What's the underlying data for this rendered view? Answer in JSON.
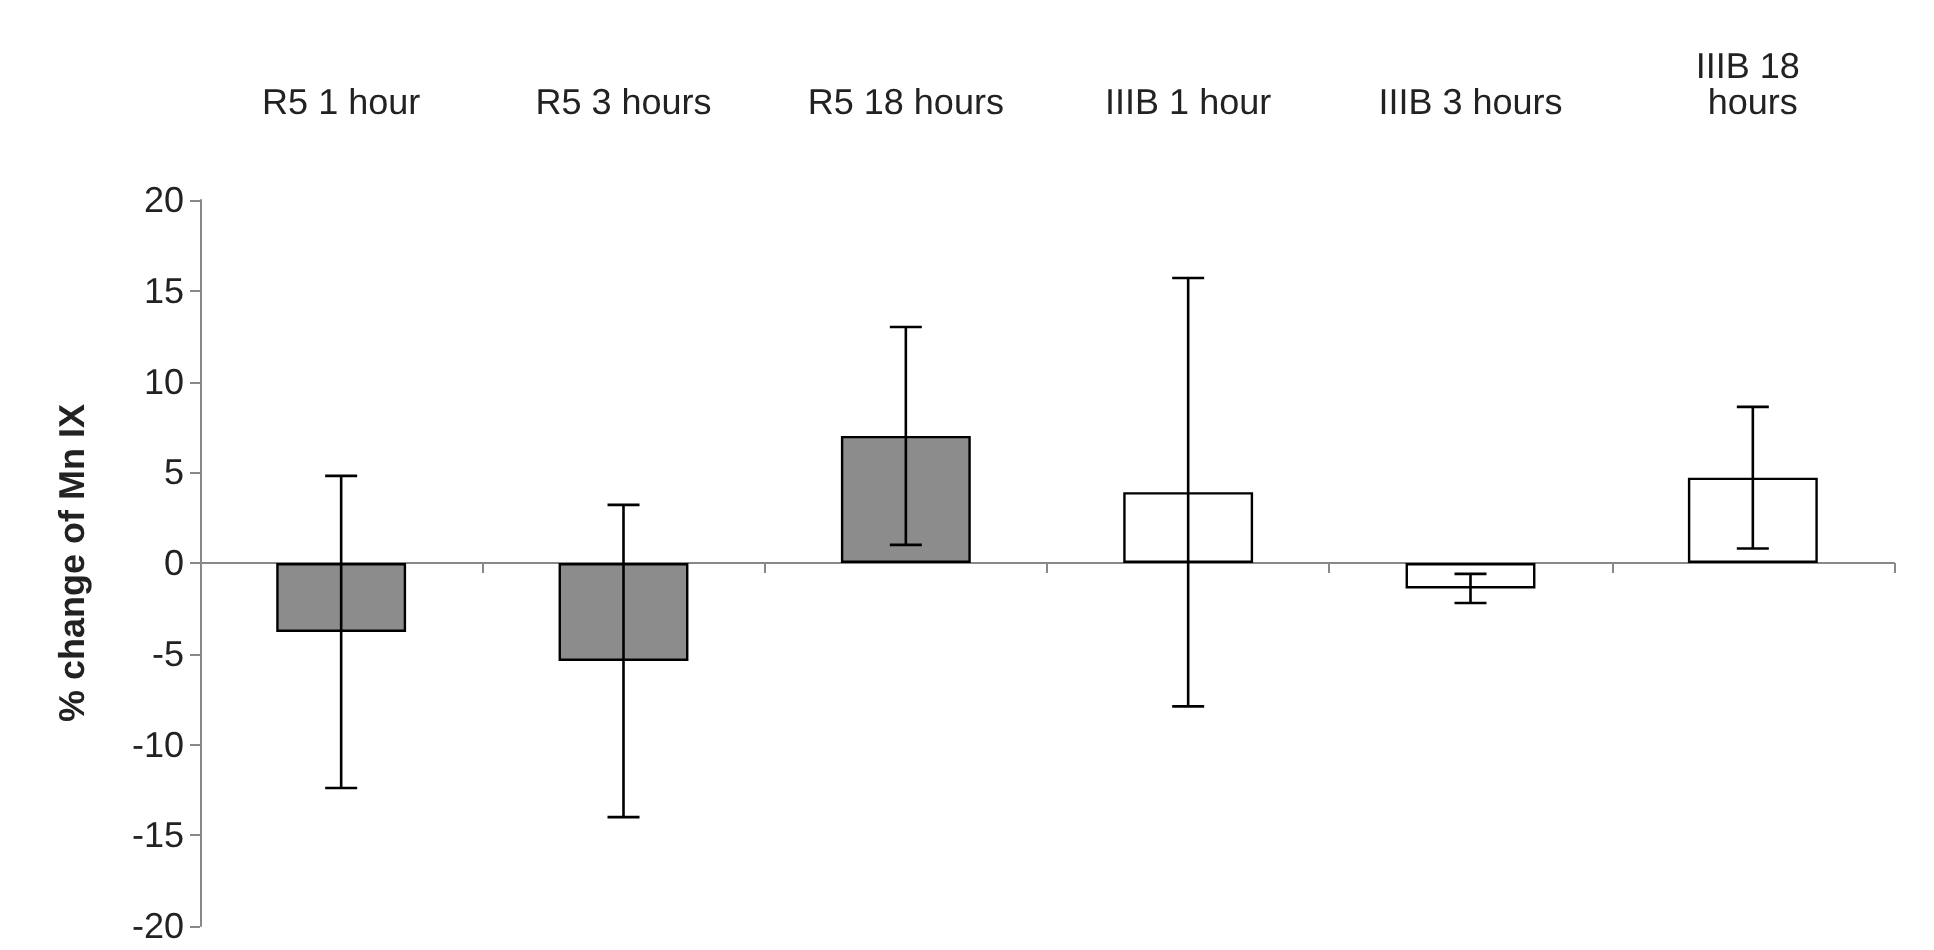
{
  "chart_data": {
    "type": "bar",
    "ylabel": "% change of Mn IX",
    "categories": [
      "R5 1 hour",
      "R5 3 hours",
      "R5 18 hours",
      "IIIB 1 hour",
      "IIIB 3 hours",
      "IIIB 18 hours"
    ],
    "values": [
      -3.8,
      -5.4,
      7,
      3.9,
      -1.4,
      4.7
    ],
    "colors": [
      "#8c8c8c",
      "#8c8c8c",
      "#8c8c8c",
      "#ffffff",
      "#ffffff",
      "#ffffff"
    ],
    "errors": [
      8.6,
      8.6,
      6,
      11.8,
      0.8,
      3.9
    ],
    "ylim": [
      -20,
      20
    ],
    "yticks": [
      -20,
      -15,
      -10,
      -5,
      0,
      5,
      10,
      15,
      20
    ]
  }
}
